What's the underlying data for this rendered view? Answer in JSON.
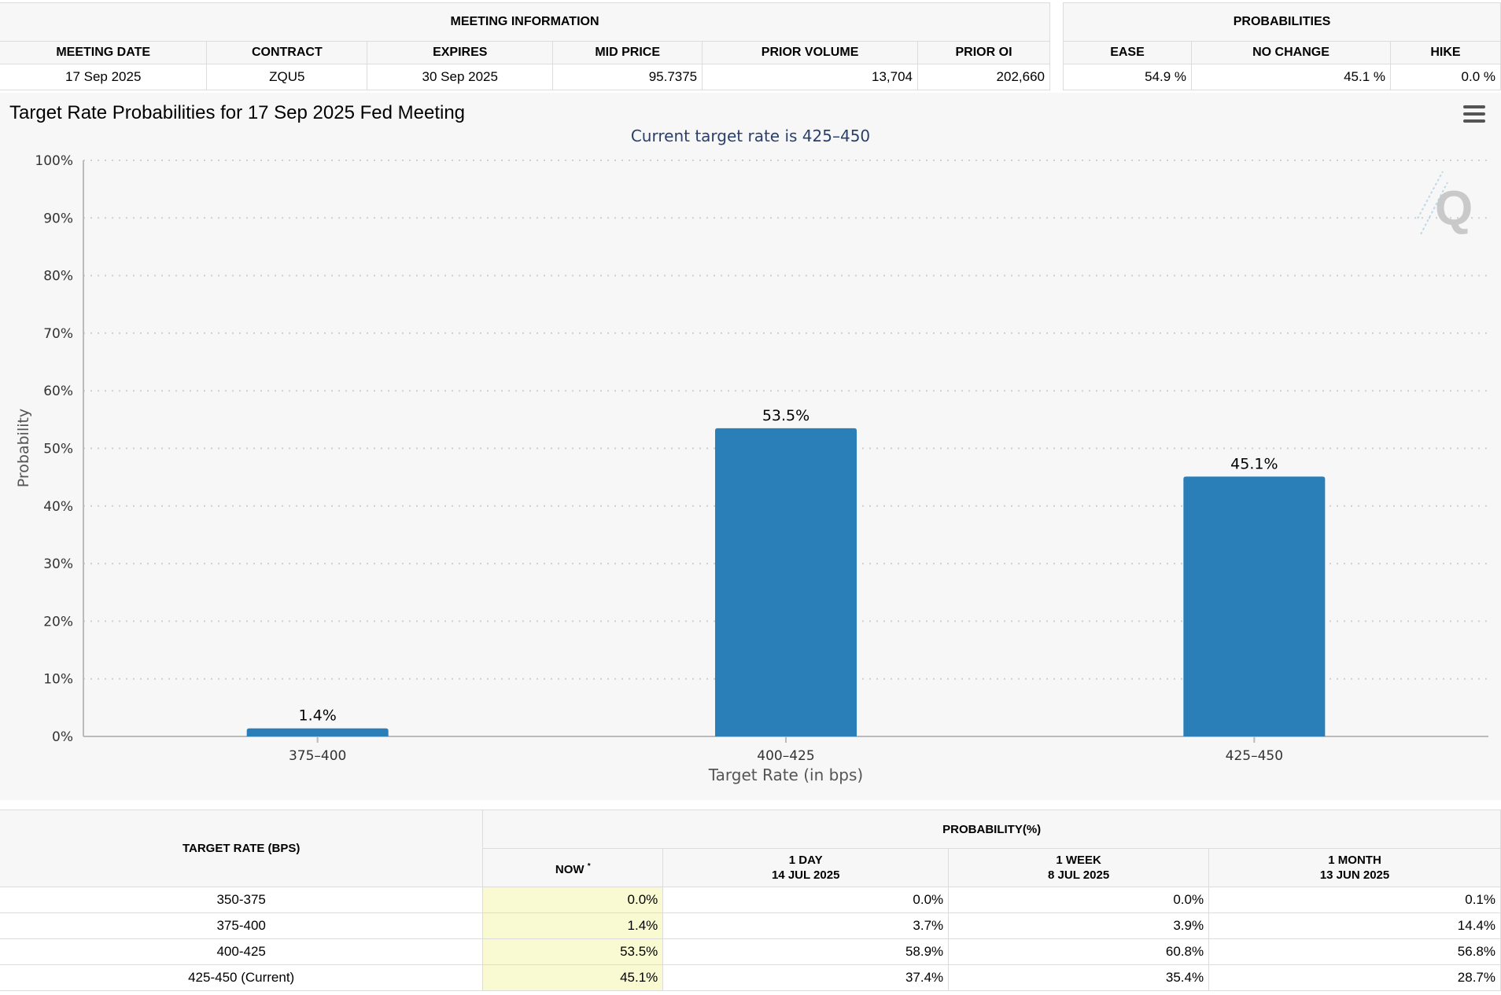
{
  "meeting_info": {
    "group_title": "MEETING INFORMATION",
    "headers": [
      "MEETING DATE",
      "CONTRACT",
      "EXPIRES",
      "MID PRICE",
      "PRIOR VOLUME",
      "PRIOR OI"
    ],
    "values": [
      "17 Sep 2025",
      "ZQU5",
      "30 Sep 2025",
      "95.7375",
      "13,704",
      "202,660"
    ]
  },
  "probabilities": {
    "group_title": "PROBABILITIES",
    "headers": [
      "EASE",
      "NO CHANGE",
      "HIKE"
    ],
    "values": [
      "54.9 %",
      "45.1 %",
      "0.0 %"
    ]
  },
  "chart": {
    "title": "Target Rate Probabilities for 17 Sep 2025 Fed Meeting",
    "menu_icon": "hamburger-menu-icon",
    "watermark_icon": "q-logo-icon",
    "bar_color": "#2a7fb8"
  },
  "chart_data": {
    "type": "bar",
    "title": "Target Rate Probabilities for 17 Sep 2025 Fed Meeting",
    "subtitle": "Current target rate is 425–450",
    "xlabel": "Target Rate (in bps)",
    "ylabel": "Probability",
    "categories": [
      "375–400",
      "400–425",
      "425–450"
    ],
    "values": [
      1.4,
      53.5,
      45.1
    ],
    "data_labels": [
      "1.4%",
      "53.5%",
      "45.1%"
    ],
    "ylim": [
      0,
      100
    ],
    "yticks": [
      0,
      10,
      20,
      30,
      40,
      50,
      60,
      70,
      80,
      90,
      100
    ],
    "ytick_labels": [
      "0%",
      "10%",
      "20%",
      "30%",
      "40%",
      "50%",
      "60%",
      "70%",
      "80%",
      "90%",
      "100%"
    ],
    "grid": true,
    "legend": "none"
  },
  "rate_table": {
    "target_rate_header": "TARGET RATE (BPS)",
    "prob_group_header": "PROBABILITY(%)",
    "now_header": "NOW",
    "now_marker": "*",
    "columns": [
      {
        "label": "1 DAY",
        "date": "14 JUL 2025"
      },
      {
        "label": "1 WEEK",
        "date": "8 JUL 2025"
      },
      {
        "label": "1 MONTH",
        "date": "13 JUN 2025"
      }
    ],
    "rows": [
      {
        "rate": "350-375",
        "now": "0.0%",
        "day": "0.0%",
        "week": "0.0%",
        "month": "0.1%"
      },
      {
        "rate": "375-400",
        "now": "1.4%",
        "day": "3.7%",
        "week": "3.9%",
        "month": "14.4%"
      },
      {
        "rate": "400-425",
        "now": "53.5%",
        "day": "58.9%",
        "week": "60.8%",
        "month": "56.8%"
      },
      {
        "rate": "425-450 (Current)",
        "now": "45.1%",
        "day": "37.4%",
        "week": "35.4%",
        "month": "28.7%"
      }
    ]
  }
}
